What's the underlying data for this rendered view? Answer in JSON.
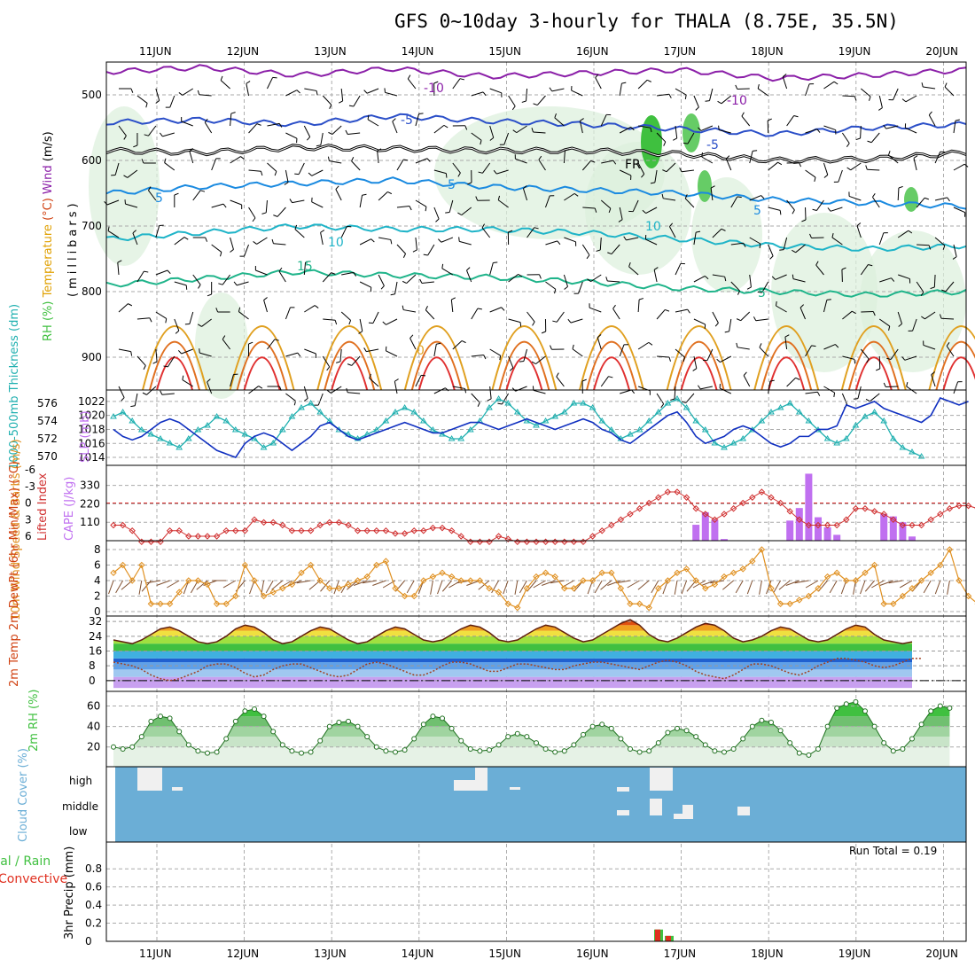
{
  "title": "GFS 0~10day 3-hourly for THALA (8.75E, 35.5N)",
  "colors": {
    "wind": "#000000",
    "temp_label": "#d04010",
    "temp_text": "#e0a000",
    "rh": "#40c040",
    "thickness": "#20b0b0",
    "slp": "#1030c0",
    "li": "#d03030",
    "cape": "#c070f0",
    "wind10": "#e09020",
    "barb10": "#805030",
    "rh2m": "#40c040",
    "cloud": "#6baed6",
    "precip_total": "#40c040",
    "precip_conv": "#e03020"
  },
  "chart_data": [
    {
      "panel": "upper-air",
      "type": "heatmap",
      "ylabel_parts": [
        "Wind",
        "(m/s)",
        "Temperature",
        "(°C)",
        "RH",
        "(%)",
        "(millibars)"
      ],
      "ylim": [
        950,
        450
      ],
      "yticks": [
        500,
        600,
        700,
        800,
        900
      ],
      "x_labels": [
        "11JUN",
        "12JUN",
        "13JUN",
        "14JUN",
        "15JUN",
        "16JUN",
        "17JUN",
        "18JUN",
        "19JUN",
        "20JUN"
      ],
      "contour_labels": [
        {
          "text": "-10",
          "color": "#8b1fa8"
        },
        {
          "text": "-10",
          "color": "#8b1fa8"
        },
        {
          "text": "-5",
          "color": "#2b4fc8"
        },
        {
          "text": "-5",
          "color": "#2b4fc8"
        },
        {
          "text": "FR",
          "color": "#000000"
        },
        {
          "text": "5",
          "color": "#1a8ae0"
        },
        {
          "text": "5",
          "color": "#1a8ae0"
        },
        {
          "text": "5",
          "color": "#1a8ae0"
        },
        {
          "text": "10",
          "color": "#1fb4c8"
        },
        {
          "text": "10",
          "color": "#1fb4c8"
        },
        {
          "text": "15",
          "color": "#1fb48a"
        },
        {
          "text": "5",
          "color": "#1fb48a"
        },
        {
          "text": "0",
          "color": "#e0a020"
        }
      ],
      "temperature_levels": [
        {
          "temp": -10,
          "color": "#8b1fa8",
          "levels": [
            465,
            458,
            470,
            460,
            472,
            467,
            462,
            475,
            470,
            462
          ]
        },
        {
          "temp": -5,
          "color": "#2b4fc8",
          "levels": [
            542,
            538,
            545,
            532,
            540,
            545,
            552,
            560,
            550,
            545
          ]
        },
        {
          "temp": 0,
          "color": "#000000",
          "levels": [
            585,
            588,
            580,
            582,
            585,
            585,
            590,
            600,
            598,
            588
          ]
        },
        {
          "temp": 5,
          "color": "#1a8ae0",
          "levels": [
            650,
            640,
            635,
            630,
            640,
            645,
            650,
            660,
            665,
            670
          ]
        },
        {
          "temp": 10,
          "color": "#1fb4c8",
          "levels": [
            720,
            710,
            700,
            705,
            705,
            710,
            720,
            730,
            735,
            730
          ]
        },
        {
          "temp": 15,
          "color": "#1fb48a",
          "levels": [
            790,
            780,
            770,
            775,
            778,
            785,
            795,
            800,
            805,
            800
          ]
        }
      ]
    },
    {
      "panel": "thickness-slp",
      "type": "line",
      "ylabel_left": "1000-500mb Thickness (dm)",
      "ylabel_right": "SLP (mb)",
      "thickness_yticks": [
        570,
        572,
        574,
        576
      ],
      "slp_yticks": [
        1014,
        1016,
        1018,
        1020,
        1022
      ],
      "thickness": [
        574.5,
        575,
        574,
        573,
        572.5,
        572,
        571.5,
        571,
        572,
        573,
        573.5,
        574.5,
        574,
        573,
        572.5,
        572,
        571,
        571.5,
        573,
        574.5,
        575.5,
        576,
        575,
        574,
        573,
        572.5,
        572,
        572.5,
        573,
        574,
        575,
        575.5,
        575,
        574,
        573,
        572.5,
        572,
        572,
        573,
        574,
        575.5,
        576.5,
        576,
        575,
        574,
        573.5,
        574,
        574.5,
        575,
        576,
        576,
        575.5,
        574,
        573,
        572,
        572.5,
        573,
        574,
        575,
        576,
        576.5,
        575.5,
        574,
        573,
        571.5,
        571,
        571.5,
        572,
        573,
        574,
        575,
        575.5,
        576,
        575,
        574,
        573,
        572,
        571.5,
        572,
        573.5,
        574.5,
        575,
        574,
        572,
        571,
        570.5,
        570
      ],
      "slp": [
        1018,
        1017,
        1016.5,
        1017,
        1018,
        1019,
        1019.5,
        1019,
        1018,
        1017,
        1016,
        1015,
        1014.5,
        1014,
        1016,
        1017,
        1017.5,
        1017,
        1016,
        1015,
        1016,
        1017,
        1018.5,
        1019,
        1018,
        1017,
        1016.5,
        1017,
        1017.5,
        1018,
        1018.5,
        1019,
        1018.5,
        1018,
        1017.5,
        1017.5,
        1018,
        1018.5,
        1019,
        1019,
        1018.5,
        1018,
        1018.5,
        1019,
        1019.5,
        1019,
        1018.5,
        1018,
        1018.5,
        1019,
        1019.5,
        1019,
        1018,
        1017.5,
        1016.5,
        1016,
        1017,
        1018,
        1019,
        1020,
        1020.5,
        1019,
        1017,
        1016,
        1016.5,
        1017,
        1018,
        1018.5,
        1018,
        1017,
        1016,
        1015.5,
        1016,
        1017,
        1017,
        1018,
        1018,
        1018.5,
        1021.5,
        1021,
        1021.5,
        1022,
        1021,
        1020.5,
        1020,
        1019.5,
        1019,
        1020,
        1022.5,
        1022,
        1021.5,
        1022
      ]
    },
    {
      "panel": "stability",
      "type": "bar",
      "ylabel_left": "Lifted Index",
      "ylabel_right": "CAPE (J/kg)",
      "li_yticks": [
        6,
        3,
        0,
        -3,
        -6
      ],
      "cape_yticks": [
        110,
        220,
        330
      ],
      "lifted_index": [
        4,
        4,
        5,
        7,
        7,
        7,
        5,
        5,
        6,
        6,
        6,
        6,
        5,
        5,
        5,
        3,
        3.5,
        3.5,
        4,
        5,
        5,
        5,
        4,
        3.5,
        3.5,
        4,
        5,
        5,
        5,
        5,
        5.5,
        5.5,
        5,
        5,
        4.5,
        4.5,
        5,
        6,
        7,
        7,
        7,
        6,
        6.5,
        7,
        7,
        7,
        7,
        7,
        7,
        7,
        7,
        6,
        5,
        4,
        3,
        2,
        1,
        0,
        -1,
        -2,
        -2,
        -1,
        1,
        2,
        3,
        2,
        1,
        0,
        -1,
        -2,
        -1,
        0,
        1.5,
        3,
        4,
        4,
        4,
        4,
        3,
        1,
        1,
        1.5,
        2,
        3,
        4,
        4,
        4,
        3,
        2,
        1,
        0.5,
        0.5,
        1
      ],
      "cape": [
        0,
        0,
        0,
        0,
        0,
        0,
        0,
        0,
        0,
        0,
        0,
        0,
        0,
        0,
        0,
        0,
        0,
        0,
        0,
        0,
        0,
        0,
        0,
        0,
        0,
        0,
        0,
        0,
        0,
        0,
        0,
        0,
        0,
        0,
        0,
        0,
        0,
        0,
        0,
        0,
        0,
        0,
        0,
        0,
        0,
        0,
        0,
        0,
        0,
        0,
        0,
        0,
        0,
        0,
        0,
        0,
        0,
        0,
        0,
        0,
        0,
        0,
        95,
        170,
        125,
        10,
        0,
        0,
        0,
        0,
        0,
        0,
        120,
        195,
        400,
        140,
        80,
        35,
        0,
        0,
        0,
        0,
        160,
        145,
        110,
        25,
        0,
        0,
        0,
        0,
        0,
        0,
        0
      ]
    },
    {
      "panel": "wind10m",
      "type": "line",
      "ylabel": "10m Wind Speed & Barbs (m/s)",
      "yticks": [
        0,
        2,
        4,
        6,
        8
      ],
      "speed": [
        5,
        6,
        4,
        6,
        1,
        1,
        1,
        2.5,
        4,
        4,
        3.5,
        1,
        1,
        2,
        6,
        4,
        2,
        2.5,
        3,
        3.5,
        5,
        6,
        4,
        3,
        3,
        3.5,
        4,
        4.5,
        6,
        6.5,
        3,
        2,
        2,
        4,
        4.5,
        5,
        4.5,
        4,
        4,
        4,
        3,
        2.5,
        1,
        0.5,
        3,
        4.5,
        5,
        4.5,
        3,
        3,
        4,
        4,
        5,
        5,
        3,
        1,
        1,
        0.5,
        3,
        4,
        5,
        5.5,
        4,
        3,
        3.5,
        4.5,
        5,
        5.5,
        6.5,
        8,
        3,
        1,
        1,
        1.5,
        2,
        3,
        4.5,
        5,
        4,
        4,
        5,
        6,
        1,
        1,
        2,
        3,
        4,
        5,
        6,
        8,
        4,
        2,
        1,
        0.5
      ],
      "barb_dirs": [
        200,
        210,
        230,
        190,
        220,
        260,
        250,
        240,
        200,
        210,
        230,
        250,
        270,
        240,
        220,
        200,
        190,
        210,
        230,
        240,
        250,
        260,
        230,
        220,
        200,
        210,
        230,
        250,
        260,
        250,
        240,
        220,
        210,
        200,
        190,
        200,
        220,
        240,
        260,
        250,
        230,
        210,
        200,
        190,
        210,
        220,
        240,
        250,
        260,
        240,
        220,
        200,
        210,
        230,
        250,
        260,
        240,
        230,
        210,
        200,
        190,
        200,
        220,
        240,
        250,
        260,
        230,
        210,
        200,
        190,
        200,
        210,
        230,
        250,
        260,
        240,
        220,
        210,
        200,
        190,
        200,
        220,
        240,
        250,
        260,
        240,
        220,
        210,
        200,
        190
      ]
    },
    {
      "panel": "temp2m",
      "type": "area",
      "ylabel": "2m Temp 2m DewPt (6hr Min/Max) (°C)",
      "yticks": [
        0,
        8,
        16,
        24,
        32
      ],
      "temp": [
        22,
        21,
        20,
        22,
        25,
        28,
        29,
        27,
        24,
        21,
        20,
        21,
        24,
        28,
        30,
        29,
        26,
        22,
        20,
        21,
        24,
        27,
        29,
        28,
        25,
        22,
        20,
        21,
        24,
        27,
        29,
        28,
        25,
        22,
        21,
        22,
        25,
        28,
        30,
        29,
        26,
        22,
        21,
        22,
        25,
        28,
        30,
        29,
        26,
        23,
        21,
        22,
        25,
        28,
        31,
        33,
        30,
        25,
        22,
        21,
        23,
        26,
        29,
        31,
        30,
        27,
        23,
        21,
        22,
        24,
        27,
        29,
        28,
        25,
        22,
        21,
        22,
        25,
        28,
        30,
        29,
        25,
        22,
        21,
        20,
        21
      ],
      "dewpt": [
        10,
        9,
        8,
        6,
        3,
        1,
        0,
        1,
        3,
        5,
        8,
        9,
        9,
        7,
        4,
        2,
        3,
        6,
        8,
        9,
        9,
        7,
        5,
        3,
        2,
        3,
        6,
        9,
        10,
        9,
        7,
        5,
        3,
        3,
        5,
        8,
        10,
        10,
        9,
        7,
        5,
        5,
        7,
        9,
        9,
        8,
        7,
        6,
        6,
        8,
        9,
        10,
        10,
        9,
        8,
        7,
        6,
        8,
        10,
        11,
        10,
        8,
        5,
        3,
        2,
        1,
        3,
        6,
        9,
        9,
        8,
        6,
        4,
        3,
        5,
        8,
        10,
        12,
        12,
        11,
        10,
        8,
        7,
        8,
        10,
        12,
        12
      ]
    },
    {
      "panel": "rh2m",
      "type": "area",
      "ylabel": "2m RH (%)",
      "yticks": [
        20,
        40,
        60
      ],
      "rh": [
        20,
        18,
        20,
        30,
        45,
        50,
        48,
        35,
        22,
        16,
        14,
        15,
        28,
        45,
        55,
        57,
        50,
        35,
        22,
        16,
        14,
        15,
        26,
        40,
        44,
        45,
        40,
        30,
        20,
        16,
        15,
        17,
        28,
        42,
        50,
        48,
        38,
        26,
        18,
        16,
        17,
        22,
        30,
        33,
        30,
        24,
        18,
        15,
        16,
        22,
        32,
        40,
        42,
        38,
        28,
        18,
        15,
        16,
        24,
        34,
        38,
        36,
        30,
        22,
        16,
        15,
        18,
        28,
        40,
        46,
        44,
        36,
        24,
        14,
        12,
        18,
        40,
        58,
        62,
        64,
        55,
        40,
        24,
        16,
        18,
        28,
        42,
        55,
        60,
        58
      ]
    },
    {
      "panel": "cloud",
      "type": "bar",
      "ylabel": "Cloud Cover (%)",
      "y_labels": [
        "high",
        "middle",
        "low"
      ],
      "high": [
        0,
        0,
        0,
        0,
        0,
        0,
        0,
        0,
        0,
        0,
        0,
        0,
        0,
        0,
        0,
        0,
        0,
        0,
        0,
        0,
        0,
        0,
        0,
        0,
        0,
        0,
        0,
        0,
        0,
        0,
        0,
        0,
        0,
        0,
        0,
        0,
        0,
        0,
        0,
        0,
        0,
        0,
        0,
        0,
        0,
        0,
        0,
        0,
        0,
        0,
        0,
        0,
        0,
        0,
        0,
        0,
        0,
        0,
        0,
        0,
        0,
        0,
        0,
        0,
        0,
        0,
        0,
        0,
        0,
        0,
        0,
        0,
        0,
        0,
        0,
        0,
        0,
        0,
        0,
        0,
        0,
        0,
        0,
        0,
        0,
        0,
        0,
        0,
        0,
        0,
        0
      ],
      "run_total_label": "Run Total = 0.19"
    },
    {
      "panel": "precip",
      "type": "bar",
      "ylabel": "3hr Precip (mm)",
      "legend_parts": [
        "Total / Rain",
        "Convective"
      ],
      "yticks": [
        0,
        0.2,
        0.4,
        0.6,
        0.8
      ],
      "total": [
        0.13,
        0.06
      ],
      "convective": [
        0.13,
        0.06
      ],
      "x_labels": [
        "11JUN",
        "12JUN",
        "13JUN",
        "14JUN",
        "15JUN",
        "16JUN",
        "17JUN",
        "18JUN",
        "19JUN",
        "20JUN"
      ]
    }
  ]
}
